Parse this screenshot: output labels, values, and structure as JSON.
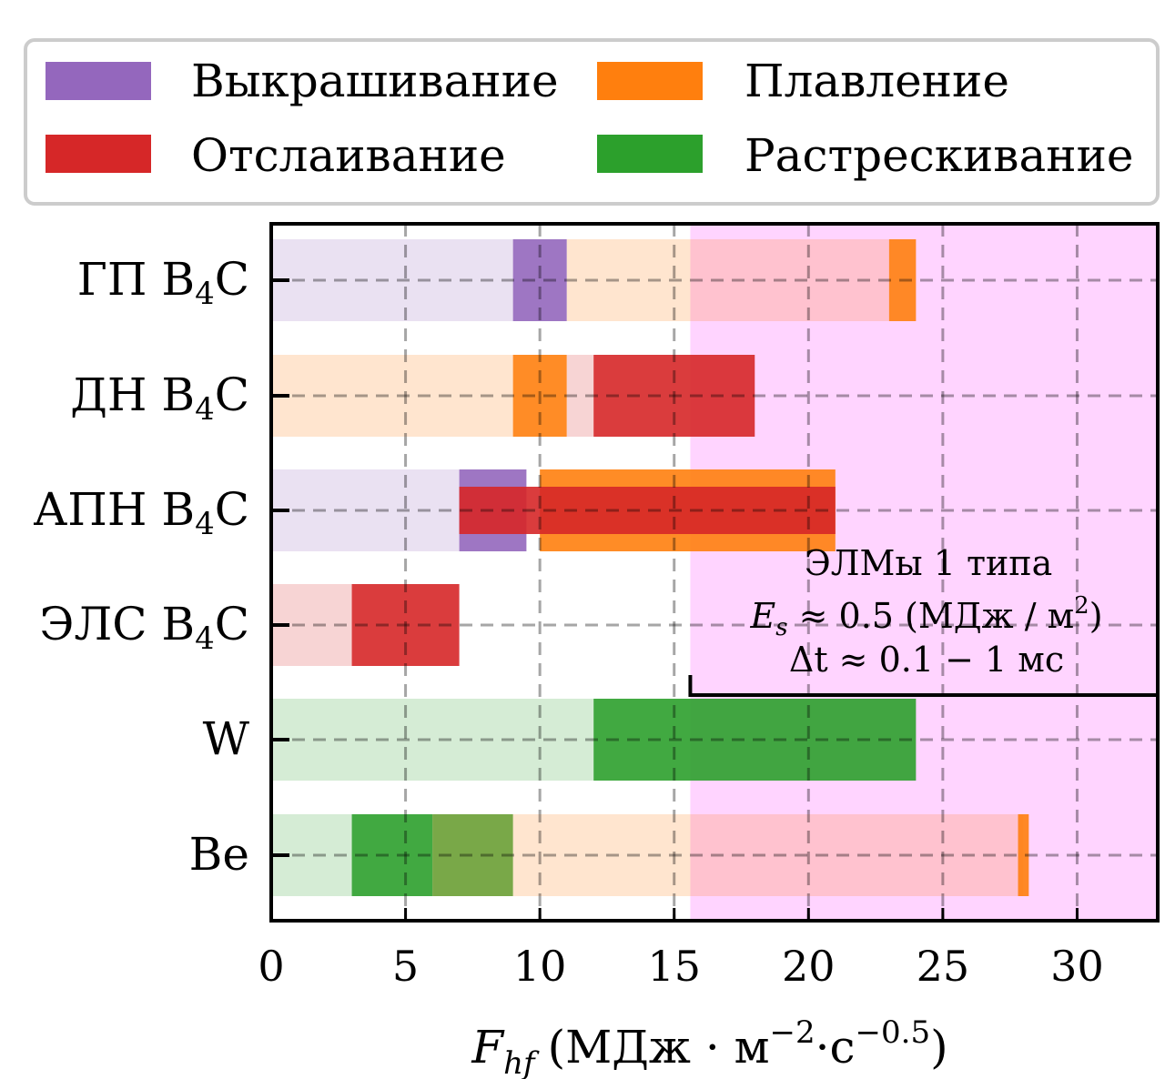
{
  "chart_data": {
    "type": "bar",
    "orientation": "horizontal",
    "xlabel": {
      "main": "F",
      "sub": "hf",
      "unit_left": "(МДж · м",
      "sup1": "−2",
      "unit_mid": "·с",
      "sup2": "−0.5",
      "unit_right": ")"
    },
    "xlim": [
      0,
      33
    ],
    "xticks": [
      0,
      5,
      10,
      15,
      20,
      25,
      30
    ],
    "grid": true,
    "legend": {
      "placement": "top",
      "entries": [
        {
          "label": "Выкрашивание",
          "color": "#9467bd"
        },
        {
          "label": "Плавление",
          "color": "#ff7f0e"
        },
        {
          "label": "Отслаивание",
          "color": "#d62728"
        },
        {
          "label": "Растрескивание",
          "color": "#2ca02c"
        }
      ]
    },
    "categories": [
      {
        "name": "ГП",
        "sub": "4"
      },
      {
        "name": "ДН",
        "sub": "4"
      },
      {
        "name": "АПН",
        "sub": "4"
      },
      {
        "name": "ЭЛС",
        "sub": "4"
      },
      {
        "name": "W",
        "sub": ""
      },
      {
        "name": "Be",
        "sub": ""
      }
    ],
    "segments": [
      {
        "row": 0,
        "x0": 0,
        "x1": 9,
        "color": "#9467bd",
        "faded": true
      },
      {
        "row": 0,
        "x0": 9,
        "x1": 11,
        "color": "#9467bd",
        "faded": false
      },
      {
        "row": 0,
        "x0": 11,
        "x1": 23,
        "color": "#ff7f0e",
        "faded": true
      },
      {
        "row": 0,
        "x0": 23,
        "x1": 24,
        "color": "#ff7f0e",
        "faded": false
      },
      {
        "row": 1,
        "x0": 0,
        "x1": 9,
        "color": "#ff7f0e",
        "faded": true
      },
      {
        "row": 1,
        "x0": 9,
        "x1": 11,
        "color": "#ff7f0e",
        "faded": false
      },
      {
        "row": 1,
        "x0": 11,
        "x1": 12,
        "color": "#d62728",
        "faded": true
      },
      {
        "row": 1,
        "x0": 12,
        "x1": 18,
        "color": "#d62728",
        "faded": false
      },
      {
        "row": 2,
        "x0": 0,
        "x1": 7,
        "color": "#9467bd",
        "faded": true
      },
      {
        "row": 2,
        "x0": 7,
        "x1": 9.5,
        "color": "#9467bd",
        "faded": false
      },
      {
        "row": 2,
        "x0": 10,
        "x1": 21,
        "color": "#ff7f0e",
        "faded": false
      },
      {
        "row": 2,
        "x0": 7,
        "x1": 21,
        "color": "#d62728",
        "faded": false,
        "thin": true
      },
      {
        "row": 3,
        "x0": 0,
        "x1": 3,
        "color": "#d62728",
        "faded": true
      },
      {
        "row": 3,
        "x0": 3,
        "x1": 7,
        "color": "#d62728",
        "faded": false
      },
      {
        "row": 4,
        "x0": 0,
        "x1": 12,
        "color": "#2ca02c",
        "faded": true
      },
      {
        "row": 4,
        "x0": 12,
        "x1": 24,
        "color": "#2ca02c",
        "faded": false
      },
      {
        "row": 5,
        "x0": 0,
        "x1": 3,
        "color": "#2ca02c",
        "faded": true
      },
      {
        "row": 5,
        "x0": 3,
        "x1": 6,
        "color": "#2ca02c",
        "faded": false
      },
      {
        "row": 5,
        "x0": 6,
        "x1": 9,
        "color": "#6a9e34",
        "faded": false
      },
      {
        "row": 5,
        "x0": 9,
        "x1": 28,
        "color": "#ff7f0e",
        "faded": true
      },
      {
        "row": 5,
        "x0": 27.8,
        "x1": 28.2,
        "color": "#ff7f0e",
        "faded": false
      }
    ],
    "elm_region": {
      "x_start": 15.6,
      "color": "#ffd4ff",
      "title": "ЭЛМы 1 типа",
      "line2": {
        "var": "E",
        "sub": "s",
        "text": " ≈ 0.5 (МДж / м",
        "sup": "2",
        "end": ")"
      },
      "line3": {
        "text": "Δt ≈ 0.1 − 1 мс"
      }
    }
  }
}
